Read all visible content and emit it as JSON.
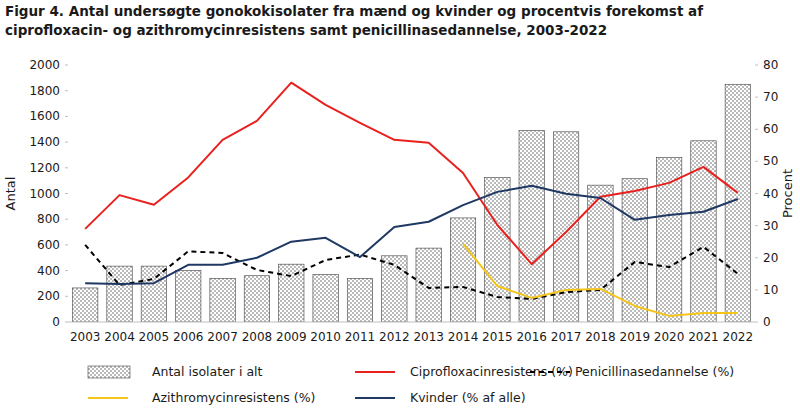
{
  "chart_data": {
    "type": "bar",
    "title": [
      "Figur 4. Antal undersøgte gonokokisolater fra mænd og kvinder og procentvis forekomst af",
      "ciprofloxacin- og azithromycinresistens samt penicillinasedannelse, 2003-2022"
    ],
    "ylabel": "Antal",
    "y2label": "Procent",
    "categories": [
      "2003",
      "2004",
      "2005",
      "2006",
      "2007",
      "2008",
      "2009",
      "2010",
      "2011",
      "2012",
      "2013",
      "2014",
      "2015",
      "2016",
      "2017",
      "2018",
      "2019",
      "2020",
      "2021",
      "2022"
    ],
    "ylim": [
      0,
      2000
    ],
    "yticks": [
      0,
      200,
      400,
      600,
      800,
      1000,
      1200,
      1400,
      1600,
      1800,
      2000
    ],
    "y2lim": [
      0,
      80
    ],
    "y2ticks": [
      0,
      10,
      20,
      30,
      40,
      50,
      60,
      70,
      80
    ],
    "grid": false,
    "legend": "bottom",
    "series": [
      {
        "name": "Antal isolater i alt",
        "type": "bar",
        "color": "#404040",
        "marker": "dots",
        "values": [
          265,
          435,
          435,
          400,
          340,
          360,
          450,
          370,
          340,
          515,
          575,
          810,
          1125,
          1490,
          1480,
          1065,
          1115,
          1280,
          1410,
          1850
        ]
      },
      {
        "name": "Ciprofloxacinresistens (%)",
        "type": "line",
        "axis": "y2",
        "color": "#e8211f",
        "line_style": "solid",
        "values": [
          29,
          39.5,
          36.5,
          45,
          56.7,
          62.6,
          74.5,
          67.6,
          62,
          56.7,
          55.8,
          46.4,
          30.2,
          18,
          28,
          39,
          40.8,
          43.3,
          48.3,
          40.2
        ]
      },
      {
        "name": "Penicillinasedannelse (%)",
        "type": "line",
        "axis": "y2",
        "color": "#000000",
        "line_style": "dashed",
        "values": [
          24,
          11.5,
          13.4,
          22,
          21.5,
          16.2,
          14.3,
          19.3,
          21,
          17.8,
          10.6,
          10.9,
          7.8,
          7.2,
          9.3,
          10,
          18.7,
          17.1,
          23.4,
          15
        ]
      },
      {
        "name": "Azithromycinresistens (%)",
        "type": "line",
        "axis": "y2",
        "color": "#f5c518",
        "line_style": "solid",
        "values": [
          null,
          null,
          null,
          null,
          null,
          null,
          null,
          null,
          null,
          null,
          null,
          24.3,
          11.2,
          7.5,
          10,
          10.3,
          5,
          1.9,
          2.8,
          2.8
        ]
      },
      {
        "name": "Kvinder (% af alle)",
        "type": "line",
        "axis": "y2",
        "color": "#1f3864",
        "line_style": "solid",
        "values": [
          12.1,
          11.8,
          12.1,
          17.8,
          17.8,
          20,
          25,
          26.2,
          20.2,
          29.6,
          31.2,
          36.4,
          40.5,
          42.4,
          39.9,
          38.6,
          31.8,
          33.3,
          34.3,
          38.3
        ]
      }
    ]
  }
}
